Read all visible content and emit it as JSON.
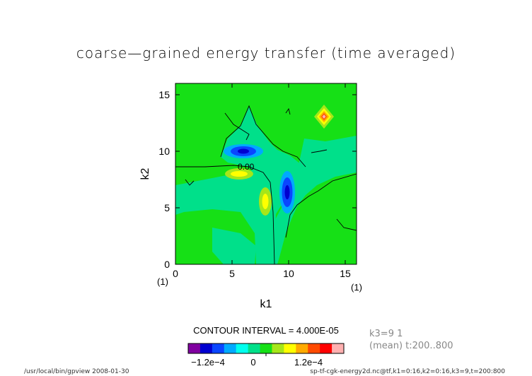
{
  "chart_data": {
    "type": "heatmap",
    "title": "coarse—grained energy transfer (time averaged)",
    "xlabel": "k1",
    "ylabel": "k2",
    "xlim": [
      0,
      16
    ],
    "ylim": [
      0,
      16
    ],
    "x_ticks": [
      "0",
      "5",
      "10",
      "15"
    ],
    "y_ticks": [
      "0",
      "5",
      "10",
      "15"
    ],
    "x_index_start": "(1)",
    "x_index_end": "(1)",
    "contour_label": "0.00",
    "contour_interval_text": "CONTOUR INTERVAL = 4.000E-05",
    "colorbar": {
      "colors": [
        "#8000a0",
        "#0000d0",
        "#0a46ff",
        "#00aaff",
        "#00ffee",
        "#00e08a",
        "#16e016",
        "#a6e619",
        "#ffff00",
        "#ffaa00",
        "#ff4a00",
        "#ff0000",
        "#ffb0b0"
      ],
      "tick_labels": [
        "−1.2e−4",
        "0",
        "1.2e−4"
      ]
    },
    "background_level": "0 to 4e-5",
    "features": [
      {
        "k1": 6,
        "k2": 10,
        "value": -0.00016
      },
      {
        "k1": 10,
        "k2": 6.3,
        "value": -0.00016
      },
      {
        "k1": 13,
        "k2": 13.1,
        "value": 0.00024
      },
      {
        "k1": 8,
        "k2": 5.7,
        "value": 0.00012
      },
      {
        "k1": 5.7,
        "k2": 8,
        "value": 0.00012
      }
    ]
  },
  "info": {
    "slice": "k3=9  1",
    "mean": "(mean) t:200..800"
  },
  "footer": {
    "left": "/usr/local/bin/gpview  2008-01-30",
    "right": "sp-tf-cgk-energy2d.nc@tf,k1=0:16,k2=0:16,k3=9,t=200:800"
  }
}
